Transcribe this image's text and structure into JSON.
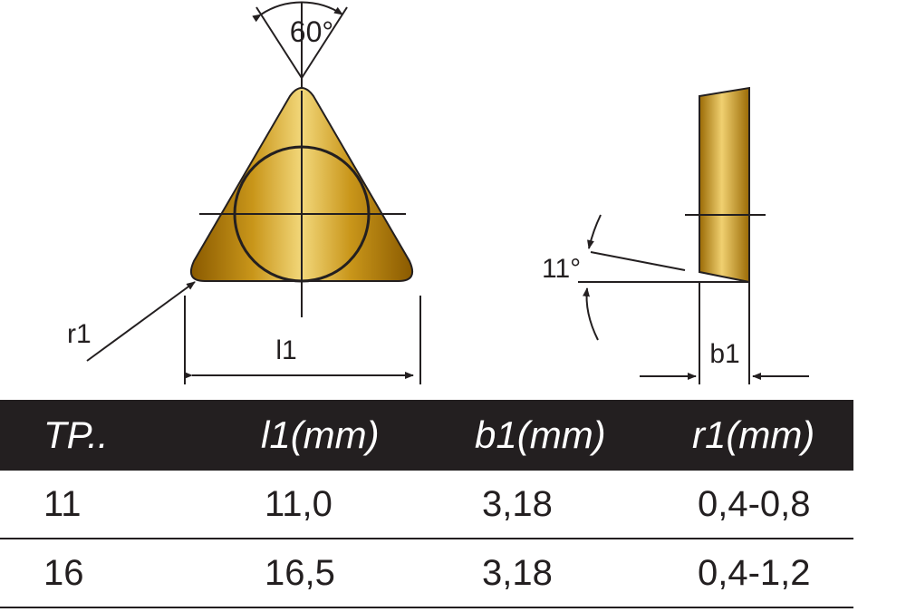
{
  "drawing": {
    "angle_label": "60°",
    "relief_angle_label": "11°",
    "l1_label": "l1",
    "r1_label": "r1",
    "b1_label": "b1",
    "insert_gradient": [
      "#8a5a00",
      "#c9961a",
      "#f2d77a",
      "#c9961a",
      "#8a5a00"
    ],
    "line_color": "#231f20"
  },
  "table": {
    "headers": [
      "TP..",
      "l1(mm)",
      "b1(mm)",
      "r1(mm)"
    ],
    "rows": [
      [
        "11",
        "11,0",
        "3,18",
        "0,4-0,8"
      ],
      [
        "16",
        "16,5",
        "3,18",
        "0,4-1,2"
      ]
    ]
  }
}
